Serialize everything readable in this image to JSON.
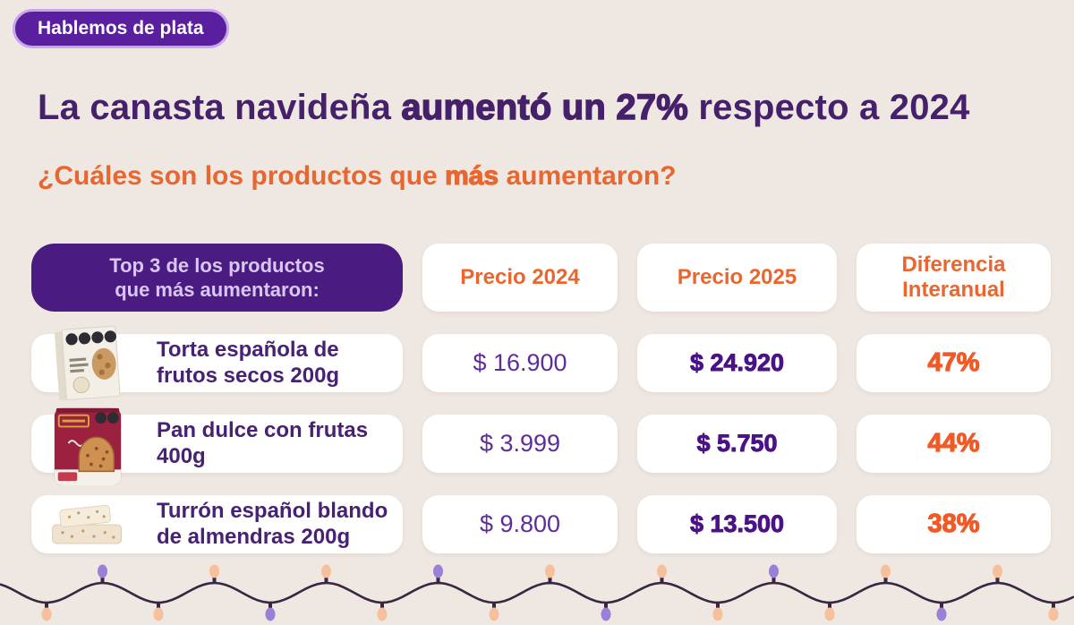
{
  "badge": {
    "label": "Hablemos de plata"
  },
  "title": {
    "part1": "La canasta navideña ",
    "part2_bold": "aumentó un 27%",
    "part3": " respecto a 2024"
  },
  "subtitle": {
    "part1": "¿Cuáles son los productos que ",
    "bold": "más",
    "part2": " aumentaron?"
  },
  "table": {
    "header": {
      "products_line1": "Top 3 de los productos",
      "products_line2": "que más aumentaron:",
      "price_2024": "Precio 2024",
      "price_2025": "Precio 2025",
      "difference_line1": "Diferencia",
      "difference_line2": "Interanual"
    },
    "rows": [
      {
        "product": "Torta española de frutos secos 200g",
        "price_2024": "$ 16.900",
        "price_2025": "$ 24.920",
        "difference": "47%"
      },
      {
        "product": "Pan dulce con frutas 400g",
        "price_2024": "$ 3.999",
        "price_2025": "$ 5.750",
        "difference": "44%"
      },
      {
        "product": "Turrón español blando de almendras 200g",
        "price_2024": "$ 9.800",
        "price_2025": "$ 13.500",
        "difference": "38%"
      }
    ]
  },
  "chart_data": {
    "type": "table",
    "title": "La canasta navideña aumentó un 27% respecto a 2024",
    "subtitle": "¿Cuáles son los productos que más aumentaron?",
    "columns": [
      "Top 3 de los productos que más aumentaron:",
      "Precio 2024",
      "Precio 2025",
      "Diferencia Interanual"
    ],
    "rows": [
      [
        "Torta española de frutos secos 200g",
        16900,
        24920,
        "47%"
      ],
      [
        "Pan dulce con frutas 400g",
        3999,
        5750,
        "44%"
      ],
      [
        "Turrón español blando de almendras 200g",
        9800,
        13500,
        "38%"
      ]
    ]
  },
  "colors": {
    "background": "#EFE7E1",
    "badge_bg": "#5A1F9E",
    "badge_border": "#C9A6E8",
    "title_purple": "#45206B",
    "accent_orange": "#E8662F",
    "percent_orange": "#F05A26",
    "header_cell_bg": "#4A1C82",
    "header_cell_text": "#D9C6F2",
    "card_bg": "#FFFFFF",
    "price_regular": "#5D2E99",
    "price_bold": "#4B1287",
    "product_text": "#472173"
  },
  "lights": {
    "wire": "#3A2640",
    "bulb_colors": {
      "peach": "#F6C09C",
      "purple": "#9C7FD6"
    },
    "sequence": [
      "peach",
      "purple",
      "peach",
      "peach",
      "purple",
      "peach",
      "peach",
      "purple",
      "peach",
      "peach",
      "purple",
      "peach",
      "peach",
      "purple",
      "peach",
      "peach",
      "purple",
      "peach",
      "peach"
    ]
  }
}
